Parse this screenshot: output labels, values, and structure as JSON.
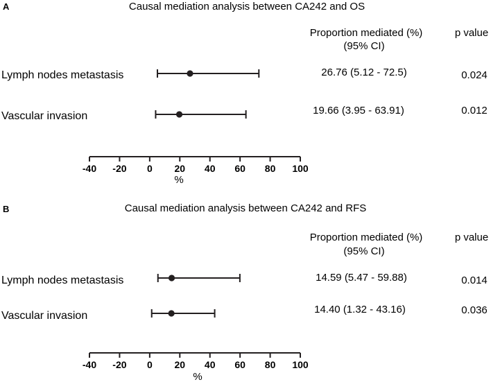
{
  "chart_data": [
    {
      "type": "forest",
      "panel_label": "A",
      "title": "Causal mediation analysis between CA242 and OS",
      "header_proportion": "Proportion mediated (%)",
      "header_ci": "(95% CI)",
      "header_p": "p value",
      "xlabel": "%",
      "xlim": [
        -40,
        100
      ],
      "xticks": [
        -40,
        -20,
        0,
        20,
        40,
        60,
        80,
        100
      ],
      "xtick_labels": [
        "-40",
        "-20",
        "0",
        "20",
        "40",
        "60",
        "80",
        "100"
      ],
      "rows": [
        {
          "label": "Lymph nodes metastasis",
          "estimate": 26.76,
          "lower": 5.12,
          "upper": 72.5,
          "estimate_text": "26.76 (5.12 - 72.5)",
          "p_value": "0.024"
        },
        {
          "label": "Vascular invasion",
          "estimate": 19.66,
          "lower": 3.95,
          "upper": 63.91,
          "estimate_text": "19.66 (3.95 - 63.91)",
          "p_value": "0.012"
        }
      ]
    },
    {
      "type": "forest",
      "panel_label": "B",
      "title": "Causal mediation analysis between CA242 and RFS",
      "header_proportion": "Proportion mediated (%)",
      "header_ci": "(95% CI)",
      "header_p": "p value",
      "xlabel": "%",
      "xlim": [
        -40,
        100
      ],
      "xticks": [
        -40,
        -20,
        0,
        20,
        40,
        60,
        80,
        100
      ],
      "xtick_labels": [
        "-40",
        "-20",
        "0",
        "20",
        "40",
        "60",
        "80",
        "100"
      ],
      "rows": [
        {
          "label": "Lymph nodes metastasis",
          "estimate": 14.59,
          "lower": 5.47,
          "upper": 59.88,
          "estimate_text": "14.59 (5.47 - 59.88)",
          "p_value": "0.014"
        },
        {
          "label": "Vascular invasion",
          "estimate": 14.4,
          "lower": 1.32,
          "upper": 43.16,
          "estimate_text": "14.40 (1.32 - 43.16)",
          "p_value": "0.036"
        }
      ]
    }
  ]
}
